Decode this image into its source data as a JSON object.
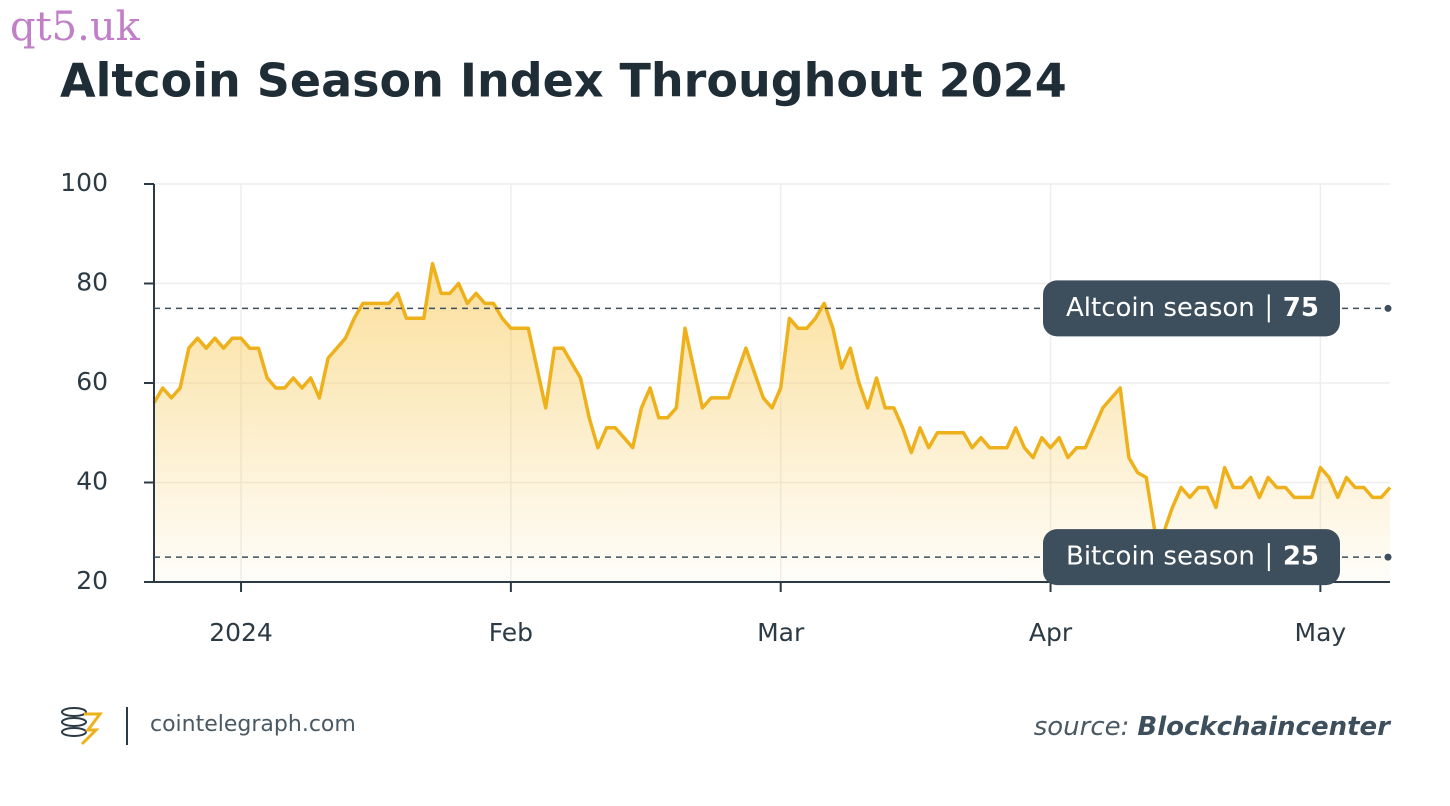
{
  "watermark": "qt5.uk",
  "footer": {
    "site": "cointelegraph.com",
    "source_prefix": "source:",
    "source": "Blockchaincenter"
  },
  "chart_data": {
    "type": "line",
    "title": "Altcoin Season Index Throughout 2024",
    "categories": [
      null,
      null,
      null,
      null,
      null,
      null,
      null,
      null,
      null,
      null,
      "2024",
      null,
      null,
      null,
      null,
      null,
      null,
      null,
      null,
      null,
      null,
      null,
      null,
      null,
      null,
      null,
      null,
      null,
      null,
      null,
      null,
      null,
      null,
      null,
      null,
      null,
      null,
      null,
      null,
      null,
      null,
      "Feb",
      null,
      null,
      null,
      null,
      null,
      null,
      null,
      null,
      null,
      null,
      null,
      null,
      null,
      null,
      null,
      null,
      null,
      null,
      null,
      null,
      null,
      null,
      null,
      null,
      null,
      null,
      null,
      null,
      null,
      null,
      "Mar",
      null,
      null,
      null,
      null,
      null,
      null,
      null,
      null,
      null,
      null,
      null,
      null,
      null,
      null,
      null,
      null,
      null,
      null,
      null,
      null,
      null,
      null,
      null,
      null,
      null,
      null,
      null,
      null,
      null,
      null,
      "Apr",
      null,
      null,
      null,
      null,
      null,
      null,
      null,
      null,
      null,
      null,
      null,
      null,
      null,
      null,
      null,
      null,
      null,
      null,
      null,
      null,
      null,
      null,
      null,
      null,
      null,
      null,
      null,
      null,
      null,
      null,
      "May",
      null,
      null,
      null,
      null,
      null,
      null,
      null,
      null
    ],
    "series": [
      {
        "name": "Altcoin Season Index",
        "color": "#eeb11b",
        "values": [
          56,
          59,
          57,
          59,
          67,
          69,
          67,
          69,
          67,
          69,
          69,
          67,
          67,
          61,
          59,
          59,
          61,
          59,
          61,
          57,
          65,
          67,
          69,
          73,
          76,
          76,
          76,
          76,
          78,
          73,
          73,
          73,
          84,
          78,
          78,
          80,
          76,
          78,
          76,
          76,
          73,
          71,
          71,
          71,
          63,
          55,
          67,
          67,
          64,
          61,
          53,
          47,
          51,
          51,
          49,
          47,
          55,
          59,
          53,
          53,
          55,
          71,
          63,
          55,
          57,
          57,
          57,
          62,
          67,
          62,
          57,
          55,
          59,
          73,
          71,
          71,
          73,
          76,
          71,
          63,
          67,
          60,
          55,
          61,
          55,
          55,
          51,
          46,
          51,
          47,
          50,
          50,
          50,
          50,
          47,
          49,
          47,
          47,
          47,
          51,
          47,
          45,
          49,
          47,
          49,
          45,
          47,
          47,
          51,
          55,
          57,
          59,
          45,
          42,
          41,
          30,
          30,
          35,
          39,
          37,
          39,
          39,
          35,
          43,
          39,
          39,
          41,
          37,
          41,
          39,
          39,
          37,
          37,
          37,
          43,
          41,
          37,
          41,
          39,
          39,
          37,
          37,
          39
        ]
      }
    ],
    "ylim": [
      20,
      100
    ],
    "yticks": [
      20,
      40,
      60,
      80,
      100
    ],
    "grid": true,
    "annotations": [
      {
        "label": "Altcoin season",
        "value": 75
      },
      {
        "label": "Bitcoin season",
        "value": 25
      }
    ]
  }
}
